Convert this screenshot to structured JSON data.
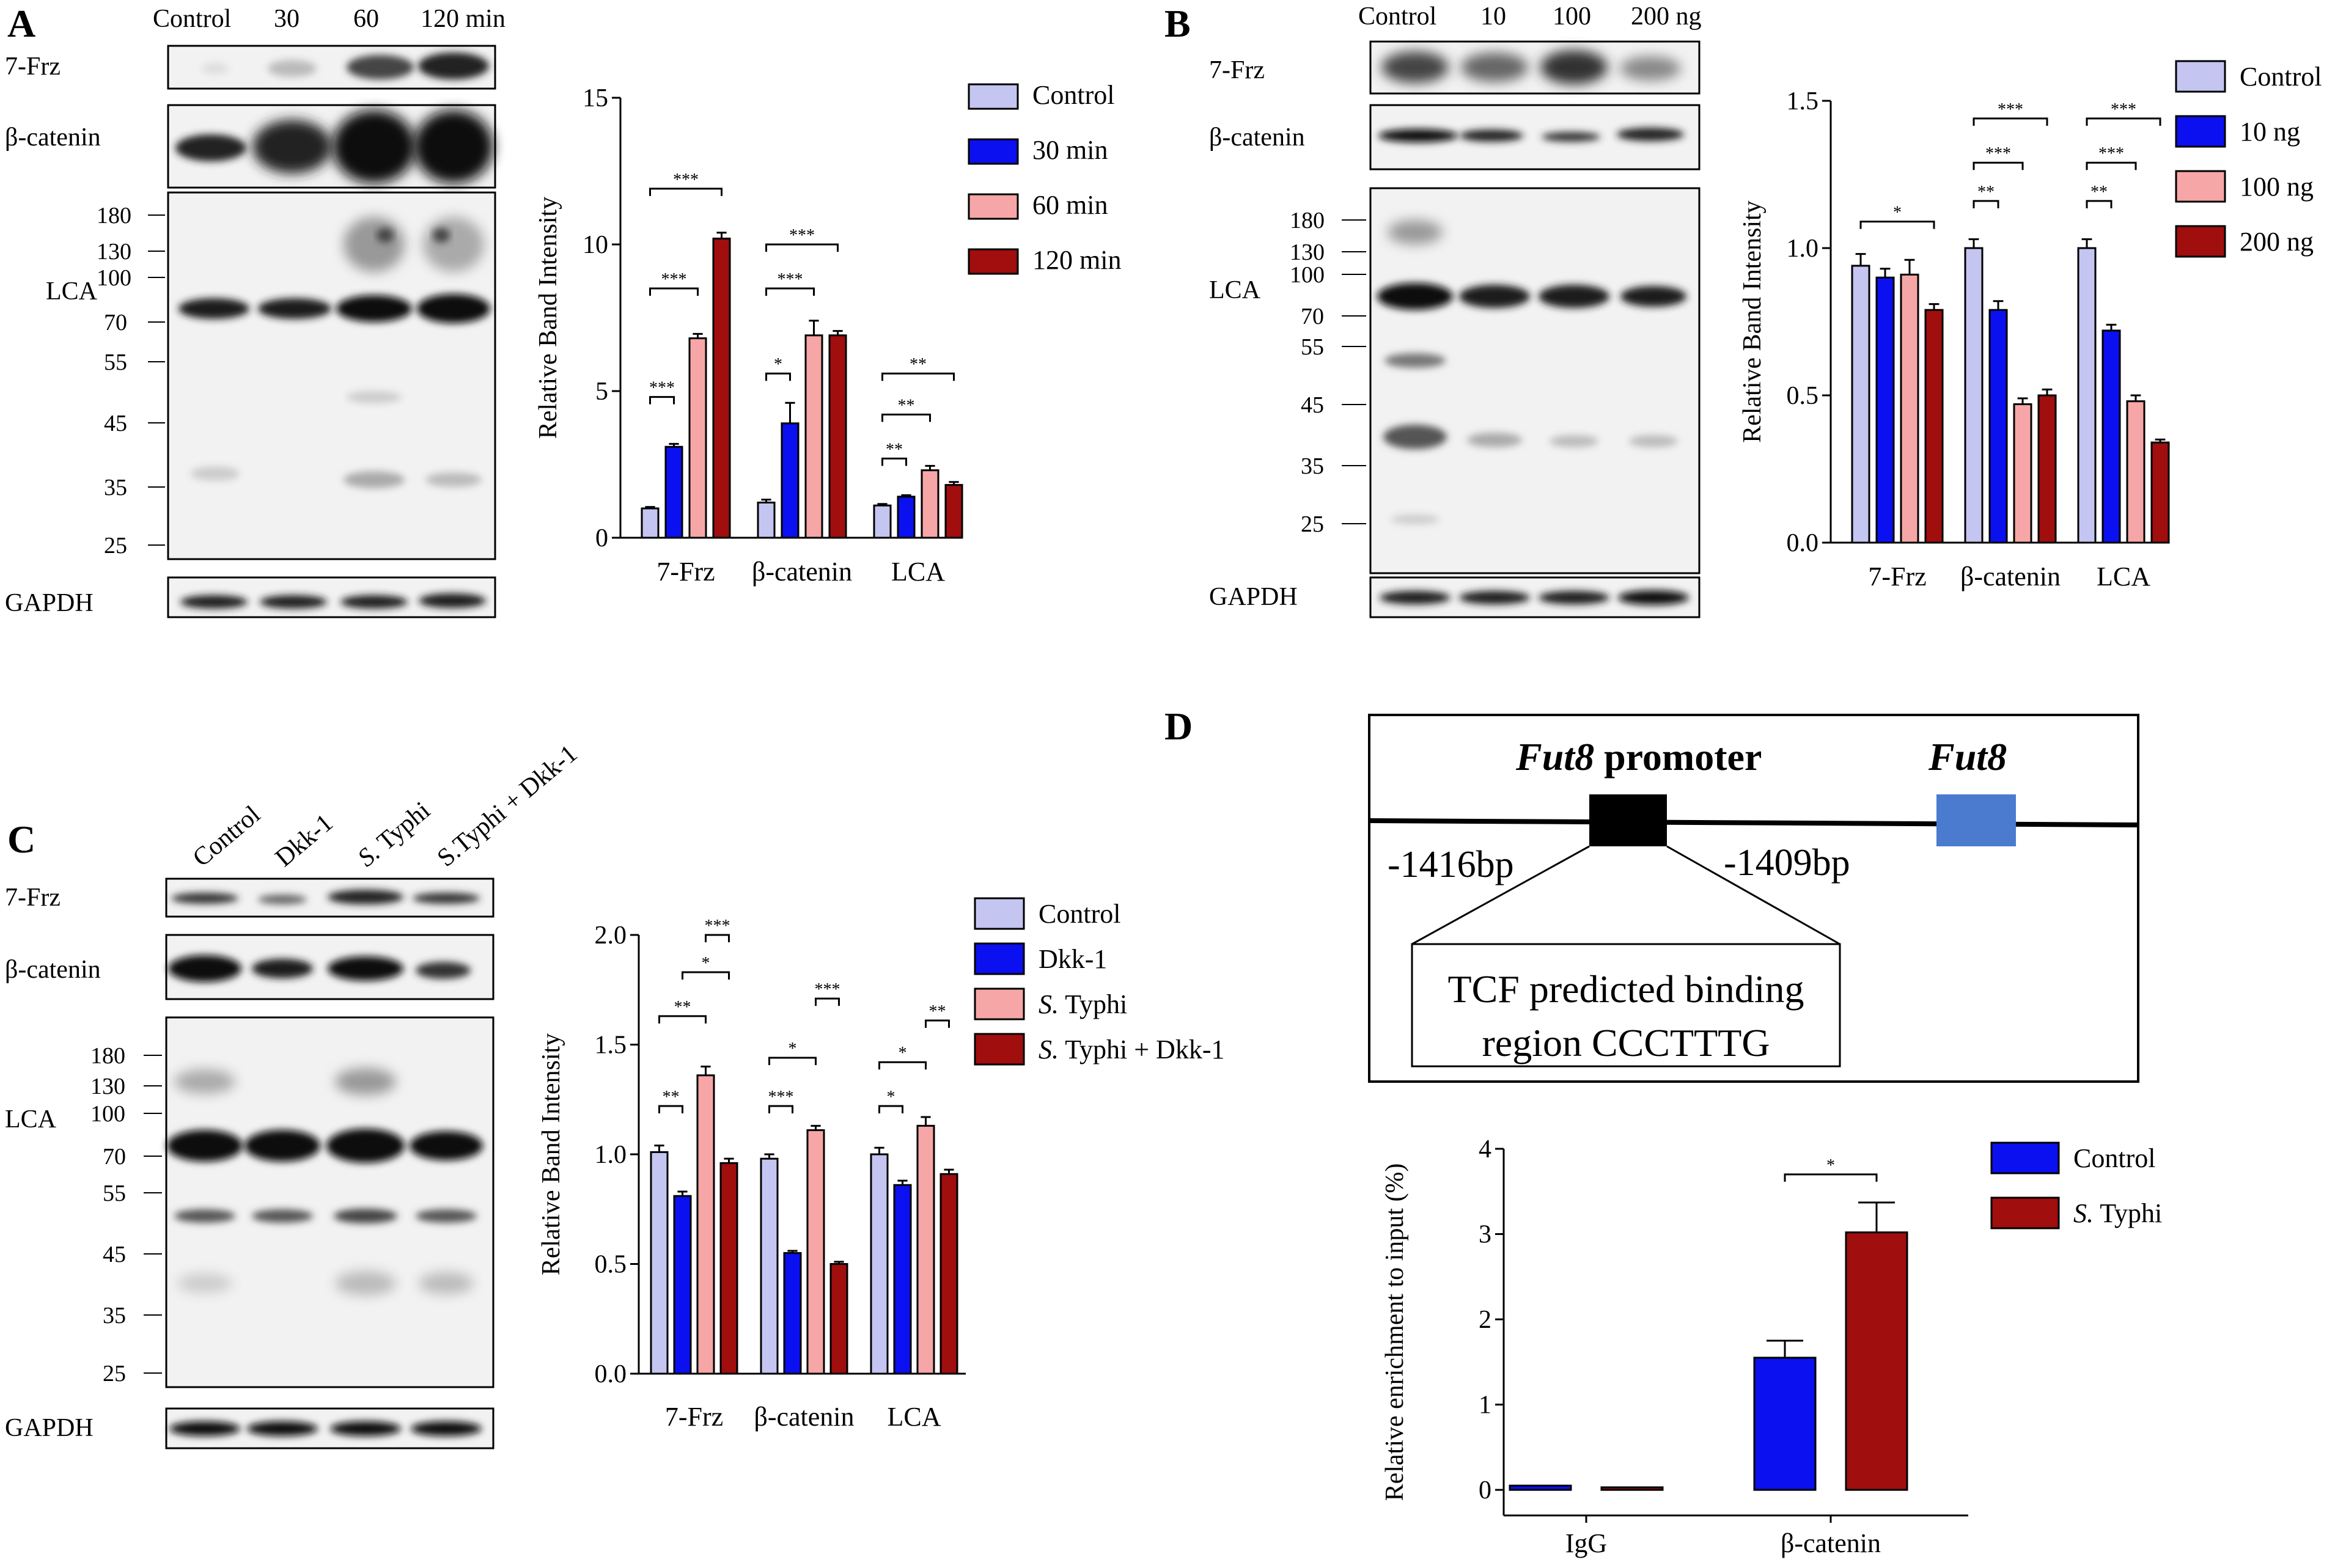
{
  "figure": {
    "panel_letters": [
      "A",
      "B",
      "C",
      "D"
    ],
    "colors": {
      "lavender": "#c5c5f2",
      "blue": "#0b10f0",
      "pink": "#f6a6a6",
      "darkred": "#a00e0e",
      "blot_bg": "#f2f2f2",
      "band": "#1a1a1a",
      "gene_box": "#4a7bcf"
    }
  },
  "panelA": {
    "lane_labels": [
      "Control",
      "30",
      "60",
      "120 min"
    ],
    "blot_labels": [
      "7-Frz",
      "β-catenin",
      "LCA",
      "GAPDH"
    ],
    "mw_markers": [
      "180",
      "130",
      "100",
      "70",
      "55",
      "45",
      "35",
      "25"
    ],
    "chart_data": {
      "type": "bar",
      "categories": [
        "7-Frz",
        "β-catenin",
        "LCA"
      ],
      "ylabel": "Relative Band Intensity",
      "ylim": [
        0,
        15
      ],
      "yticks": [
        "0",
        "5",
        "10",
        "15"
      ],
      "legend_position": "top-right",
      "series": [
        {
          "name": "Control",
          "color": "#c5c5f2",
          "values": [
            1.0,
            1.2,
            1.1
          ],
          "errors": [
            0.05,
            0.1,
            0.05
          ]
        },
        {
          "name": "30 min",
          "color": "#0b10f0",
          "values": [
            3.1,
            3.9,
            1.4
          ],
          "errors": [
            0.1,
            0.7,
            0.05
          ]
        },
        {
          "name": "60 min",
          "color": "#f6a6a6",
          "values": [
            6.8,
            6.9,
            2.3
          ],
          "errors": [
            0.15,
            0.5,
            0.15
          ]
        },
        {
          "name": "120 min",
          "color": "#a00e0e",
          "values": [
            10.2,
            6.9,
            1.8
          ],
          "errors": [
            0.2,
            0.15,
            0.1
          ]
        }
      ],
      "significance": [
        {
          "cat": 0,
          "from": 0,
          "to": 1,
          "label": "***",
          "y": 4.8
        },
        {
          "cat": 0,
          "from": 0,
          "to": 2,
          "label": "***",
          "y": 8.5
        },
        {
          "cat": 0,
          "from": 0,
          "to": 3,
          "label": "***",
          "y": 11.9
        },
        {
          "cat": 1,
          "from": 0,
          "to": 1,
          "label": "*",
          "y": 5.6
        },
        {
          "cat": 1,
          "from": 0,
          "to": 2,
          "label": "***",
          "y": 8.5
        },
        {
          "cat": 1,
          "from": 0,
          "to": 3,
          "label": "***",
          "y": 10.0
        },
        {
          "cat": 2,
          "from": 0,
          "to": 1,
          "label": "**",
          "y": 2.7
        },
        {
          "cat": 2,
          "from": 0,
          "to": 2,
          "label": "**",
          "y": 4.2
        },
        {
          "cat": 2,
          "from": 0,
          "to": 3,
          "label": "**",
          "y": 5.6
        }
      ]
    }
  },
  "panelB": {
    "lane_labels": [
      "Control",
      "10",
      "100",
      "200 ng"
    ],
    "blot_labels": [
      "7-Frz",
      "β-catenin",
      "LCA",
      "GAPDH"
    ],
    "mw_markers": [
      "180",
      "130",
      "100",
      "70",
      "55",
      "45",
      "35",
      "25"
    ],
    "chart_data": {
      "type": "bar",
      "categories": [
        "7-Frz",
        "β-catenin",
        "LCA"
      ],
      "ylabel": "Relative Band Intensity",
      "ylim": [
        0,
        1.5
      ],
      "yticks": [
        "0.0",
        "0.5",
        "1.0",
        "1.5"
      ],
      "legend_position": "top-right",
      "series": [
        {
          "name": "Control",
          "color": "#c5c5f2",
          "values": [
            0.94,
            1.0,
            1.0
          ],
          "errors": [
            0.04,
            0.03,
            0.03
          ]
        },
        {
          "name": "10 ng",
          "color": "#0b10f0",
          "values": [
            0.9,
            0.79,
            0.72
          ],
          "errors": [
            0.03,
            0.03,
            0.02
          ]
        },
        {
          "name": "100 ng",
          "color": "#f6a6a6",
          "values": [
            0.91,
            0.47,
            0.48
          ],
          "errors": [
            0.05,
            0.02,
            0.02
          ]
        },
        {
          "name": "200 ng",
          "color": "#a00e0e",
          "values": [
            0.79,
            0.5,
            0.34
          ],
          "errors": [
            0.02,
            0.02,
            0.01
          ]
        }
      ],
      "significance": [
        {
          "cat": 0,
          "from": 0,
          "to": 3,
          "label": "*",
          "y": 1.09
        },
        {
          "cat": 1,
          "from": 0,
          "to": 1,
          "label": "**",
          "y": 1.16
        },
        {
          "cat": 1,
          "from": 0,
          "to": 2,
          "label": "***",
          "y": 1.29
        },
        {
          "cat": 1,
          "from": 0,
          "to": 3,
          "label": "***",
          "y": 1.44
        },
        {
          "cat": 2,
          "from": 0,
          "to": 1,
          "label": "**",
          "y": 1.16
        },
        {
          "cat": 2,
          "from": 0,
          "to": 2,
          "label": "***",
          "y": 1.29
        },
        {
          "cat": 2,
          "from": 0,
          "to": 3,
          "label": "***",
          "y": 1.44
        }
      ]
    }
  },
  "panelC": {
    "lane_labels": [
      "Control",
      "Dkk-1",
      "S. Typhi",
      "S.Typhi + Dkk-1"
    ],
    "blot_labels": [
      "7-Frz",
      "β-catenin",
      "LCA",
      "GAPDH"
    ],
    "mw_markers": [
      "180",
      "130",
      "100",
      "70",
      "55",
      "45",
      "35",
      "25"
    ],
    "chart_data": {
      "type": "bar",
      "categories": [
        "7-Frz",
        "β-catenin",
        "LCA"
      ],
      "ylabel": "Relative Band Intensity",
      "ylim": [
        0,
        2.0
      ],
      "yticks": [
        "0.0",
        "0.5",
        "1.0",
        "1.5",
        "2.0"
      ],
      "legend_position": "top-right",
      "series": [
        {
          "name": "Control",
          "color": "#c5c5f2",
          "values": [
            1.01,
            0.98,
            1.0
          ],
          "errors": [
            0.03,
            0.02,
            0.03
          ]
        },
        {
          "name": "Dkk-1",
          "color": "#0b10f0",
          "values": [
            0.81,
            0.55,
            0.86
          ],
          "errors": [
            0.02,
            0.01,
            0.02
          ]
        },
        {
          "name": "S. Typhi",
          "color": "#f6a6a6",
          "values": [
            1.36,
            1.11,
            1.13
          ],
          "errors": [
            0.04,
            0.02,
            0.04
          ]
        },
        {
          "name": "S. Typhi + Dkk-1",
          "color": "#a00e0e",
          "values": [
            0.96,
            0.5,
            0.91
          ],
          "errors": [
            0.02,
            0.01,
            0.02
          ]
        }
      ],
      "legend_italic": [
        false,
        false,
        true,
        true
      ],
      "significance": [
        {
          "cat": 0,
          "from": 0,
          "to": 1,
          "label": "**",
          "y": 1.22
        },
        {
          "cat": 0,
          "from": 0,
          "to": 2,
          "label": "**",
          "y": 1.63
        },
        {
          "cat": 0,
          "from": 1,
          "to": 3,
          "label": "*",
          "y": 1.83
        },
        {
          "cat": 0,
          "from": 2,
          "to": 3,
          "label": "***",
          "y": 2.0
        },
        {
          "cat": 1,
          "from": 0,
          "to": 1,
          "label": "***",
          "y": 1.22
        },
        {
          "cat": 1,
          "from": 0,
          "to": 2,
          "label": "*",
          "y": 1.44
        },
        {
          "cat": 1,
          "from": 2,
          "to": 3,
          "label": "***",
          "y": 1.71
        },
        {
          "cat": 2,
          "from": 0,
          "to": 1,
          "label": "*",
          "y": 1.22
        },
        {
          "cat": 2,
          "from": 0,
          "to": 2,
          "label": "*",
          "y": 1.42
        },
        {
          "cat": 2,
          "from": 2,
          "to": 3,
          "label": "**",
          "y": 1.61
        }
      ]
    }
  },
  "panelD": {
    "schematic": {
      "promoter_name": "Fut8",
      "promoter_suffix": " promoter",
      "gene_name": "Fut8",
      "left_position": "-1416bp",
      "right_position": "-1409bp",
      "callout_line1": "TCF predicted binding",
      "callout_line2": "region CCCTTTG"
    },
    "chart_data": {
      "type": "bar",
      "categories": [
        "IgG",
        "β-catenin"
      ],
      "ylabel": "Relative enrichment to input (%)",
      "ylim": [
        -0.3,
        4
      ],
      "yticks": [
        "0",
        "1",
        "2",
        "3",
        "4"
      ],
      "legend_position": "top-right",
      "series": [
        {
          "name": "Control",
          "color": "#0b10f0",
          "values": [
            0.05,
            1.55
          ],
          "errors": [
            0.0,
            0.2
          ]
        },
        {
          "name": "S. Typhi",
          "color": "#a00e0e",
          "values": [
            0.03,
            3.02
          ],
          "errors": [
            0.0,
            0.35
          ]
        }
      ],
      "legend_italic": [
        false,
        true
      ],
      "significance": [
        {
          "cat": 1,
          "from": 0,
          "to": 1,
          "label": "*",
          "y": 3.7
        }
      ]
    }
  }
}
